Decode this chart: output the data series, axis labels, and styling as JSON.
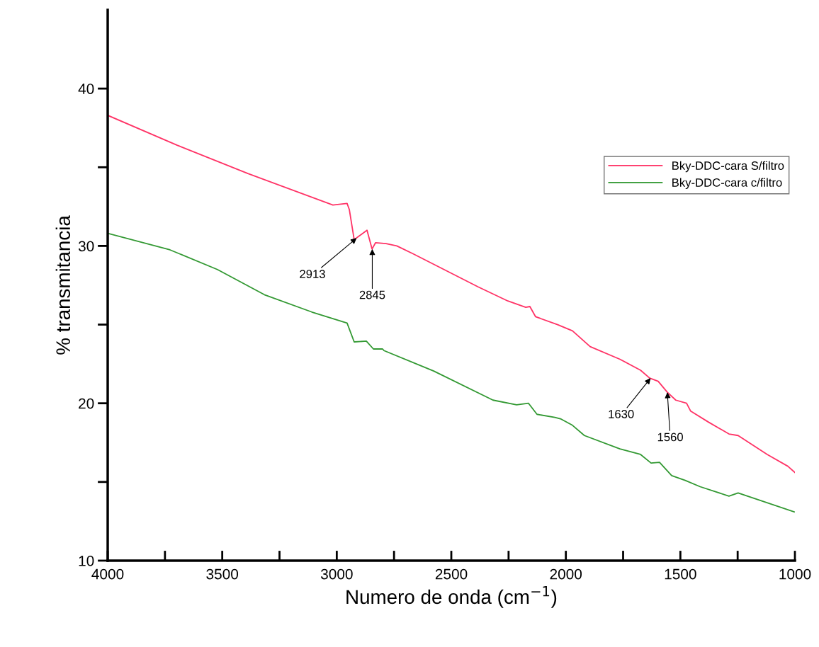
{
  "chart_data": {
    "type": "line",
    "xlabel": "Numero de onda (cm$^{−1}$)",
    "ylabel": "% transmitancia",
    "xlim": [
      4000,
      1000
    ],
    "ylim": [
      10,
      45
    ],
    "xticks": [
      4000,
      {
        "value": 3750,
        "label": null
      },
      3500,
      {
        "value": 3250,
        "label": null
      },
      3000,
      {
        "value": 2750,
        "label": null
      },
      2500,
      {
        "value": 2250,
        "label": null
      },
      2000,
      {
        "value": 1750,
        "label": null
      },
      1500,
      {
        "value": 1250,
        "label": null
      },
      1000
    ],
    "yticks": [
      10,
      {
        "value": 15,
        "label": null
      },
      20,
      {
        "value": 25,
        "label": null
      },
      30,
      {
        "value": 35,
        "label": null
      },
      40
    ],
    "grid": false,
    "legend": "right",
    "line_style": "solid",
    "marker": "none",
    "series": [
      {
        "name": "Bky-DDC-cara S/filtro",
        "color": "#ff3366",
        "x": [
          4000,
          3697,
          3388,
          3017,
          2955,
          2945,
          2924,
          2868,
          2846,
          2831,
          2785,
          2738,
          2667,
          2383,
          2253,
          2175,
          2157,
          2132,
          2036,
          1971,
          1894,
          1764,
          1674,
          1634,
          1597,
          1557,
          1520,
          1473,
          1455,
          1377,
          1288,
          1248,
          1121,
          1031,
          1000
        ],
        "values": [
          38.3,
          36.4,
          34.6,
          32.6,
          32.7,
          32.3,
          30.4,
          31.0,
          29.8,
          30.2,
          30.15,
          30.0,
          29.5,
          27.4,
          26.5,
          26.1,
          26.15,
          25.5,
          25.0,
          24.6,
          23.6,
          22.8,
          22.1,
          21.6,
          21.4,
          20.7,
          20.2,
          20.0,
          19.5,
          18.8,
          18.05,
          17.95,
          16.75,
          16.0,
          15.6
        ]
      },
      {
        "name": "Bky-DDC-cara c/filtro",
        "color": "#339933",
        "x": [
          4000,
          3728,
          3521,
          3316,
          3109,
          2955,
          2924,
          2871,
          2840,
          2800,
          2794,
          2577,
          2318,
          2215,
          2163,
          2126,
          2048,
          2021,
          1971,
          1919,
          1764,
          1674,
          1628,
          1591,
          1538,
          1479,
          1414,
          1288,
          1248,
          1003
        ],
        "values": [
          30.8,
          29.75,
          28.5,
          26.9,
          25.8,
          25.1,
          23.9,
          23.95,
          23.45,
          23.45,
          23.35,
          22.05,
          20.2,
          19.9,
          20.0,
          19.3,
          19.1,
          19.0,
          18.6,
          17.95,
          17.1,
          16.75,
          16.2,
          16.25,
          15.4,
          15.1,
          14.7,
          14.1,
          14.3,
          13.1
        ]
      }
    ],
    "annotations": [
      {
        "text": "2913",
        "x": 2913,
        "y": 30.5
      },
      {
        "text": "2845",
        "x": 2845,
        "y": 29.8
      },
      {
        "text": "1630",
        "x": 1630,
        "y": 21.6
      },
      {
        "text": "1560",
        "x": 1557,
        "y": 20.7
      }
    ]
  }
}
